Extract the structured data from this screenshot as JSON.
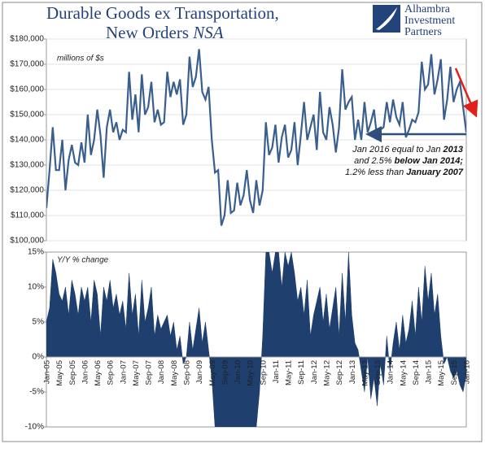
{
  "title_line1": "Durable Goods ex Transportation,",
  "title_line2": "New Orders",
  "title_italic": "NSA",
  "logo": [
    "Alhambra",
    "Investment",
    "Partners"
  ],
  "annotation": [
    [
      {
        "text": "Jan 2016 equal to Jan ",
        "bold": false
      },
      {
        "text": "2013",
        "bold": true
      }
    ],
    [
      {
        "text": "and 2.5% ",
        "bold": false
      },
      {
        "text": "below Jan 2014;",
        "bold": true
      }
    ],
    [
      {
        "text": "1.2% less than ",
        "bold": false
      },
      {
        "text": "January 2007",
        "bold": true
      }
    ]
  ],
  "chart_data": [
    {
      "type": "line",
      "label": "millions of $s",
      "color": "#3a5f8e",
      "grid": true,
      "ylim": [
        100000,
        180000
      ],
      "yticks": [
        {
          "value": 100000,
          "label": "$100,000"
        },
        {
          "value": 110000,
          "label": "$110,000"
        },
        {
          "value": 120000,
          "label": "$120,000"
        },
        {
          "value": 130000,
          "label": "$130,000"
        },
        {
          "value": 140000,
          "label": "$140,000"
        },
        {
          "value": 150000,
          "label": "$150,000"
        },
        {
          "value": 160000,
          "label": "$160,000"
        },
        {
          "value": 170000,
          "label": "$170,000"
        },
        {
          "value": 180000,
          "label": "$180,000"
        }
      ],
      "values": [
        113000,
        128000,
        145000,
        128000,
        128000,
        140000,
        120000,
        132000,
        138000,
        131000,
        130000,
        139000,
        131000,
        150000,
        134000,
        140000,
        152000,
        142000,
        125000,
        145000,
        152000,
        143000,
        147000,
        140000,
        144000,
        143000,
        167000,
        148000,
        158000,
        143000,
        166000,
        150000,
        153000,
        163000,
        147000,
        152000,
        146000,
        147000,
        167000,
        157000,
        163000,
        158000,
        164000,
        146000,
        150000,
        173000,
        161000,
        165000,
        176000,
        159000,
        156000,
        161000,
        140000,
        127000,
        128000,
        106000,
        110000,
        124000,
        111000,
        112000,
        123000,
        114000,
        118000,
        128000,
        116000,
        111000,
        124000,
        114000,
        120000,
        147000,
        134000,
        137000,
        146000,
        131000,
        141000,
        146000,
        133000,
        136000,
        147000,
        130000,
        142000,
        155000,
        140000,
        145000,
        150000,
        136000,
        159000,
        143000,
        140000,
        153000,
        146000,
        135000,
        145000,
        168000,
        152000,
        155000,
        157000,
        140000,
        148000,
        140000,
        155000,
        143000,
        147000,
        152000,
        140000,
        144000,
        145000,
        155000,
        147000,
        156000,
        149000,
        146000,
        155000,
        141000,
        144000,
        148000,
        147000,
        151000,
        171000,
        160000,
        162000,
        174000,
        158000,
        164000,
        172000,
        148000,
        156000,
        169000,
        155000,
        160000,
        163000,
        153000,
        143000
      ]
    },
    {
      "type": "area",
      "label": "Y/Y % change",
      "color": "#1f3f6e",
      "ylim": [
        -10,
        15
      ],
      "yticks": [
        {
          "value": -10,
          "label": "-10%"
        },
        {
          "value": -5,
          "label": "-5%"
        },
        {
          "value": 0,
          "label": "0%"
        },
        {
          "value": 5,
          "label": "5%"
        },
        {
          "value": 10,
          "label": "10%"
        },
        {
          "value": 15,
          "label": "15%"
        }
      ],
      "categories": [
        "Jan-05",
        null,
        null,
        null,
        "May-05",
        null,
        null,
        null,
        "Sep-05",
        null,
        null,
        null,
        "Jan-06",
        null,
        null,
        null,
        "May-06",
        null,
        null,
        null,
        "Sep-06",
        null,
        null,
        null,
        "Jan-07",
        null,
        null,
        null,
        "May-07",
        null,
        null,
        null,
        "Sep-07",
        null,
        null,
        null,
        "Jan-08",
        null,
        null,
        null,
        "May-08",
        null,
        null,
        null,
        "Sep-08",
        null,
        null,
        null,
        "Jan-09",
        null,
        null,
        null,
        "May-09",
        null,
        null,
        null,
        "Sep-09",
        null,
        null,
        null,
        "Jan-10",
        null,
        null,
        null,
        "May-10",
        null,
        null,
        null,
        "Sep-10",
        null,
        null,
        null,
        "Jan-11",
        null,
        null,
        null,
        "May-11",
        null,
        null,
        null,
        "Sep-11",
        null,
        null,
        null,
        "Jan-12",
        null,
        null,
        null,
        "May-12",
        null,
        null,
        null,
        "Sep-12",
        null,
        null,
        null,
        "Jan-13",
        null,
        null,
        null,
        "May-13",
        null,
        null,
        null,
        "Sep-13",
        null,
        null,
        null,
        "Jan-14",
        null,
        null,
        null,
        "May-14",
        null,
        null,
        null,
        "Sep-14",
        null,
        null,
        null,
        "Jan-15",
        null,
        null,
        null,
        "May-15",
        null,
        null,
        null,
        "Sep-15",
        null,
        null,
        null,
        "Jan-16"
      ],
      "values": [
        5,
        7,
        14,
        12,
        9,
        8,
        10,
        6,
        11,
        9,
        6,
        10,
        8,
        10,
        5,
        11,
        9,
        3,
        10,
        8,
        11,
        7,
        9,
        6,
        8,
        4,
        12,
        6,
        9,
        3,
        11,
        5,
        7,
        10,
        3,
        6,
        4,
        5,
        6,
        3,
        5,
        1,
        3,
        -1,
        0,
        5,
        1,
        4,
        7,
        2,
        5,
        1,
        -3,
        -10,
        -10,
        -10,
        -10,
        -10,
        -10,
        -10,
        -10,
        -10,
        -10,
        -10,
        -10,
        -10,
        -10,
        -5,
        3,
        15,
        15,
        12,
        15,
        15,
        10,
        15,
        13,
        15,
        12,
        8,
        10,
        6,
        11,
        3,
        6,
        8,
        10,
        5,
        9,
        4,
        7,
        10,
        3,
        12,
        5,
        15,
        6,
        2,
        1,
        -2,
        -5,
        0,
        -6,
        -3,
        -7,
        -1,
        -4,
        3,
        -2,
        2,
        5,
        1,
        6,
        2,
        4,
        8,
        3,
        10,
        5,
        13,
        8,
        12,
        6,
        9,
        3,
        -1,
        0,
        -2,
        -3,
        -2,
        -4,
        -5,
        -2.5
      ]
    }
  ]
}
